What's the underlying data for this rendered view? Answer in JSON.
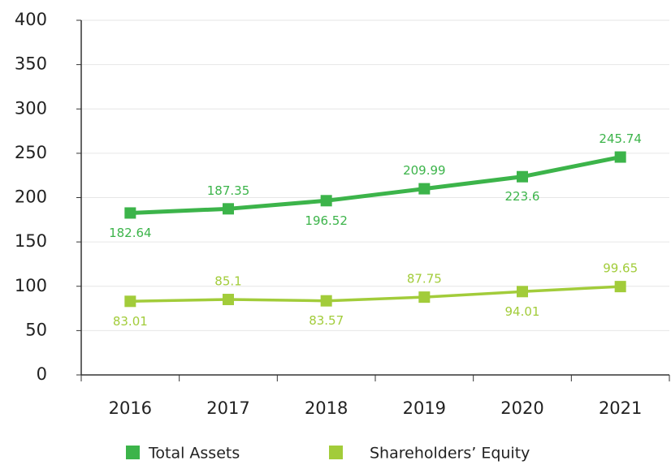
{
  "chart_data": {
    "type": "line",
    "categories": [
      "2016",
      "2017",
      "2018",
      "2019",
      "2020",
      "2021"
    ],
    "series": [
      {
        "name": "Total Assets",
        "color": "#3cb44a",
        "values": [
          182.64,
          187.35,
          196.52,
          209.99,
          223.6,
          245.74
        ]
      },
      {
        "name": "Shareholders’ Equity",
        "color": "#a2cc3a",
        "values": [
          83.01,
          85.1,
          83.57,
          87.75,
          94.01,
          99.65
        ]
      }
    ],
    "ylim": [
      0,
      400
    ],
    "yticks": [
      0,
      50,
      100,
      150,
      200,
      250,
      300,
      350,
      400
    ],
    "grid": true
  }
}
